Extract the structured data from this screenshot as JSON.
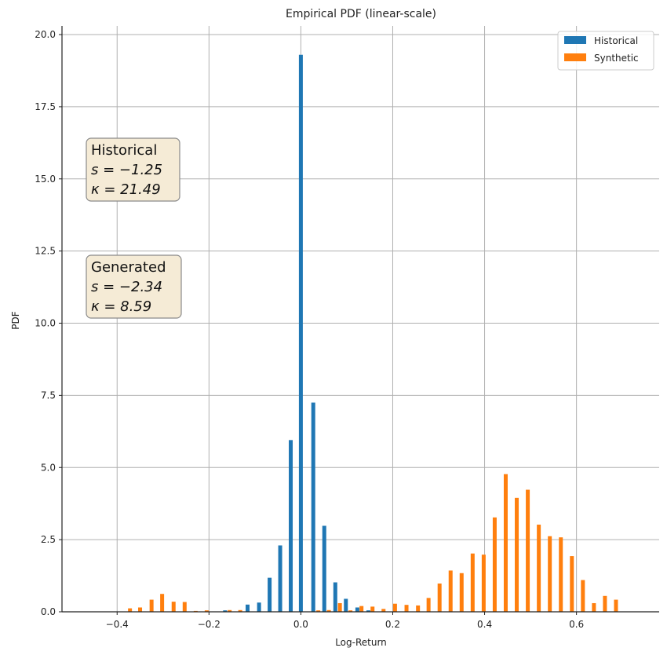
{
  "chart_data": {
    "type": "bar",
    "title": "Empirical PDF (linear-scale)",
    "xlabel": "Log-Return",
    "ylabel": "PDF",
    "xlim": [
      -0.52,
      0.78
    ],
    "ylim": [
      0,
      20.3
    ],
    "grid": true,
    "legend_position": "top-right",
    "x_ticks": [
      -0.4,
      -0.2,
      0.0,
      0.2,
      0.4,
      0.6
    ],
    "x_tick_labels": [
      "−0.4",
      "−0.2",
      "0.0",
      "0.2",
      "0.4",
      "0.6"
    ],
    "y_ticks": [
      0,
      2.5,
      5,
      7.5,
      10,
      12.5,
      15,
      17.5,
      20
    ],
    "y_tick_labels": [
      "0.0",
      "2.5",
      "5.0",
      "7.5",
      "10.0",
      "12.5",
      "15.0",
      "17.5",
      "20.0"
    ],
    "series": [
      {
        "name": "Historical",
        "color": "#1f77b4",
        "x": [
          -0.165,
          -0.116,
          -0.091,
          -0.068,
          -0.045,
          -0.022,
          0.0,
          0.027,
          0.051,
          0.075,
          0.098,
          0.123,
          0.147
        ],
        "values": [
          0.05,
          0.25,
          0.32,
          1.18,
          2.3,
          5.95,
          19.3,
          7.25,
          2.98,
          1.02,
          0.45,
          0.15,
          0.05
        ]
      },
      {
        "name": "Synthetic",
        "color": "#ff7f0e",
        "x": [
          -0.372,
          -0.35,
          -0.325,
          -0.302,
          -0.277,
          -0.253,
          -0.229,
          -0.205,
          -0.18,
          -0.155,
          -0.132,
          -0.107,
          -0.083,
          -0.058,
          -0.034,
          -0.01,
          0.014,
          0.038,
          0.061,
          0.085,
          0.108,
          0.132,
          0.156,
          0.18,
          0.205,
          0.23,
          0.255,
          0.278,
          0.302,
          0.326,
          0.35,
          0.374,
          0.398,
          0.422,
          0.446,
          0.47,
          0.494,
          0.518,
          0.542,
          0.566,
          0.59,
          0.614,
          0.638,
          0.662,
          0.686,
          0.71
        ],
        "values": [
          0.12,
          0.15,
          0.42,
          0.62,
          0.35,
          0.34,
          0.03,
          0.05,
          0.0,
          0.06,
          0.06,
          0.0,
          0.0,
          0.0,
          0.0,
          0.0,
          0.0,
          0.05,
          0.06,
          0.3,
          0.05,
          0.2,
          0.18,
          0.1,
          0.28,
          0.24,
          0.22,
          0.48,
          0.98,
          1.43,
          1.34,
          2.02,
          1.98,
          3.27,
          4.77,
          3.95,
          4.23,
          3.02,
          2.62,
          2.58,
          1.93,
          1.1,
          0.3,
          0.55,
          0.42,
          0.0
        ]
      }
    ],
    "annotations": [
      {
        "id": "historical",
        "position": "upper-left",
        "lines": [
          "Historical",
          "s = −1.25",
          "κ = 21.49"
        ]
      },
      {
        "id": "generated",
        "position": "middle-left",
        "lines": [
          "Generated",
          "s = −2.34",
          "κ = 8.59"
        ]
      }
    ]
  }
}
